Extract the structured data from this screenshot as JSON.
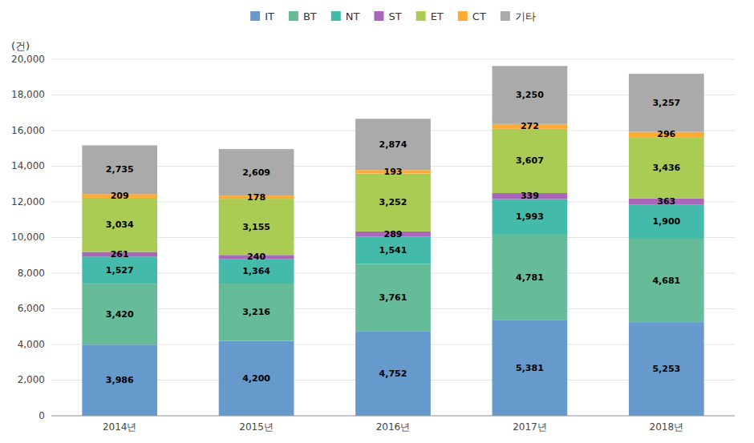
{
  "chart_data": {
    "type": "bar",
    "stacked": true,
    "ylabel": "(건)",
    "categories": [
      "2014년",
      "2015년",
      "2016년",
      "2017년",
      "2018년"
    ],
    "series": [
      {
        "name": "IT",
        "color": "#6699CC",
        "values": [
          3986,
          4200,
          4752,
          5381,
          5253
        ],
        "value_labels": [
          "3,986",
          "4,200",
          "4,752",
          "5,381",
          "5,253"
        ]
      },
      {
        "name": "BT",
        "color": "#66BB99",
        "values": [
          3420,
          3216,
          3761,
          4781,
          4681
        ],
        "value_labels": [
          "3,420",
          "3,216",
          "3,761",
          "4,781",
          "4,681"
        ]
      },
      {
        "name": "NT",
        "color": "#44BBAA",
        "values": [
          1527,
          1364,
          1541,
          1993,
          1900
        ],
        "value_labels": [
          "1,527",
          "1,364",
          "1,541",
          "1,993",
          "1,900"
        ]
      },
      {
        "name": "ST",
        "color": "#AA66BB",
        "values": [
          261,
          240,
          289,
          339,
          363
        ],
        "value_labels": [
          "261",
          "240",
          "289",
          "339",
          "363"
        ]
      },
      {
        "name": "ET",
        "color": "#AACC55",
        "values": [
          3034,
          3155,
          3252,
          3607,
          3436
        ],
        "value_labels": [
          "3,034",
          "3,155",
          "3,252",
          "3,607",
          "3,436"
        ]
      },
      {
        "name": "CT",
        "color": "#FFAA33",
        "values": [
          209,
          178,
          193,
          272,
          296
        ],
        "value_labels": [
          "209",
          "178",
          "193",
          "272",
          "296"
        ]
      },
      {
        "name": "기타",
        "color": "#AAAAAA",
        "values": [
          2735,
          2609,
          2874,
          3250,
          3257
        ],
        "value_labels": [
          "2,735",
          "2,609",
          "2,874",
          "3,250",
          "3,257"
        ]
      }
    ],
    "ylim": [
      0,
      20000
    ],
    "yticks": [
      0,
      {
        "value": 2000,
        "label": "2,000"
      },
      {
        "value": 4000,
        "label": "4,000"
      },
      {
        "value": 6000,
        "label": "6,000"
      },
      {
        "value": 8000,
        "label": "8,000"
      },
      {
        "value": 10000,
        "label": "10,000"
      },
      {
        "value": 12000,
        "label": "12,000"
      },
      {
        "value": 14000,
        "label": "14,000"
      },
      {
        "value": 16000,
        "label": "16,000"
      },
      {
        "value": 18000,
        "label": "18,000"
      },
      {
        "value": 20000,
        "label": "20,000"
      }
    ],
    "grid": true,
    "legend": "top",
    "data_labels": true
  }
}
